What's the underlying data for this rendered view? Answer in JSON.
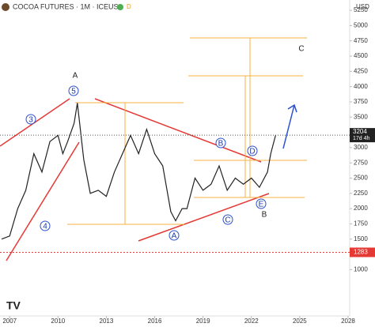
{
  "chart_data": {
    "type": "line",
    "title": "COCOA FUTURES · 1M · ICEUS",
    "currency": "USD",
    "x": [
      2006.5,
      2007,
      2007.5,
      2008,
      2008.5,
      2009,
      2009.5,
      2010,
      2010.3,
      2010.6,
      2011,
      2011.2,
      2011.6,
      2012,
      2012.5,
      2013,
      2013.5,
      2014,
      2014.5,
      2015,
      2015.5,
      2016,
      2016.5,
      2017,
      2017.3,
      2017.7,
      2018,
      2018.5,
      2019,
      2019.5,
      2020,
      2020.5,
      2021,
      2021.5,
      2022,
      2022.5,
      2023,
      2023.2,
      2023.5
    ],
    "series": [
      {
        "name": "Cocoa",
        "color": "#222222",
        "values": [
          1500,
          1550,
          2000,
          2300,
          2900,
          2600,
          3100,
          3200,
          2900,
          3100,
          3400,
          3730,
          2800,
          2250,
          2300,
          2200,
          2600,
          2900,
          3200,
          2900,
          3300,
          2900,
          2700,
          1950,
          1800,
          2000,
          2000,
          2500,
          2300,
          2400,
          2700,
          2300,
          2500,
          2400,
          2500,
          2350,
          2600,
          2900,
          3200
        ]
      }
    ],
    "xlim": [
      2006.4,
      2028.1
    ],
    "ylim": [
      240,
      5420
    ],
    "xticks": [
      2007,
      2010,
      2013,
      2016,
      2019,
      2022,
      2025,
      2028
    ],
    "yticks": [
      1000,
      1500,
      1750,
      2000,
      2250,
      2500,
      2750,
      3000,
      3500,
      3750,
      4000,
      4250,
      4500,
      4750,
      5000,
      5250
    ],
    "grid": false,
    "last_price": 3204,
    "last_price_countdown": "17d 4h",
    "marker_price": 1283,
    "annotations": {
      "w3": "3",
      "w4": "4",
      "w5": "5",
      "topA": "A",
      "cA": "A",
      "cB": "B",
      "cC": "C",
      "cD": "D",
      "cE": "E",
      "botB": "B",
      "topC": "C"
    }
  }
}
